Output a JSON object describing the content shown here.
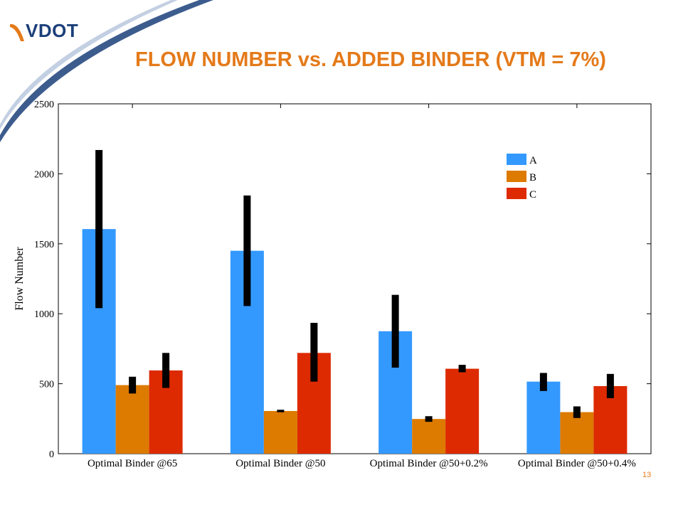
{
  "header": {
    "logo_text": "VDOT",
    "title": "FLOW NUMBER vs. ADDED BINDER (VTM = 7%)"
  },
  "footer": {
    "page_number": "13"
  },
  "colors": {
    "A": "#3399ff",
    "B": "#dd7a00",
    "C": "#dd2a00",
    "title": "#e47a1a",
    "logo": "#1b3f7a",
    "error_bar": "#000000"
  },
  "chart_data": {
    "type": "bar",
    "title": "",
    "xlabel": "",
    "ylabel": "Flow Number",
    "ylim": [
      0,
      2500
    ],
    "yticks": [
      0,
      500,
      1000,
      1500,
      2000,
      2500
    ],
    "grid": false,
    "legend_position": "top-right",
    "categories": [
      "Optimal Binder @65",
      "Optimal Binder @50",
      "Optimal Binder @50+0.2%",
      "Optimal Binder @50+0.4%"
    ],
    "series": [
      {
        "name": "A",
        "values": [
          1605,
          1450,
          875,
          515
        ],
        "error_low": [
          1040,
          1055,
          615,
          448
        ],
        "error_high": [
          2170,
          1845,
          1135,
          577
        ]
      },
      {
        "name": "B",
        "values": [
          490,
          305,
          248,
          297
        ],
        "error_low": [
          430,
          296,
          228,
          255
        ],
        "error_high": [
          550,
          314,
          268,
          338
        ]
      },
      {
        "name": "C",
        "values": [
          595,
          720,
          607,
          483
        ],
        "error_low": [
          470,
          515,
          582,
          397
        ],
        "error_high": [
          720,
          935,
          635,
          570
        ]
      }
    ]
  }
}
